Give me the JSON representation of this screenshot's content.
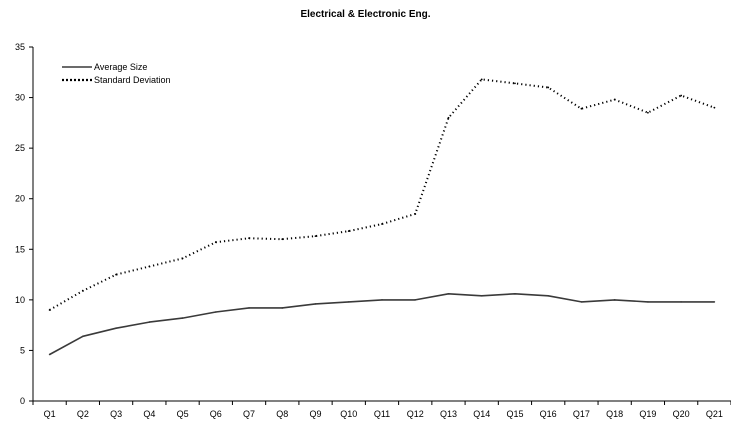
{
  "chart_data": {
    "type": "line",
    "title": "Electrical & Electronic Eng.",
    "xlabel": "",
    "ylabel": "",
    "categories": [
      "Q1",
      "Q2",
      "Q3",
      "Q4",
      "Q5",
      "Q6",
      "Q7",
      "Q8",
      "Q9",
      "Q10",
      "Q11",
      "Q12",
      "Q13",
      "Q14",
      "Q15",
      "Q16",
      "Q17",
      "Q18",
      "Q19",
      "Q20",
      "Q21"
    ],
    "ylim": [
      0,
      35
    ],
    "yticks": [
      0,
      5,
      10,
      15,
      20,
      25,
      30,
      35
    ],
    "grid": false,
    "legend_position": "top-left",
    "series": [
      {
        "name": "Average Size",
        "style": "solid",
        "color": "#3a3a3a",
        "values": [
          4.6,
          6.4,
          7.2,
          7.8,
          8.2,
          8.8,
          9.2,
          9.2,
          9.6,
          9.8,
          10.0,
          10.0,
          10.6,
          10.4,
          10.6,
          10.4,
          9.8,
          10.0,
          9.8,
          9.8,
          9.8
        ]
      },
      {
        "name": "Standard Deviation",
        "style": "dotted",
        "color": "#000000",
        "values": [
          9.0,
          10.9,
          12.5,
          13.3,
          14.1,
          15.7,
          16.1,
          16.0,
          16.3,
          16.8,
          17.5,
          18.5,
          28.0,
          31.8,
          31.4,
          31.0,
          28.9,
          29.8,
          28.5,
          30.2,
          29.0
        ]
      }
    ]
  }
}
